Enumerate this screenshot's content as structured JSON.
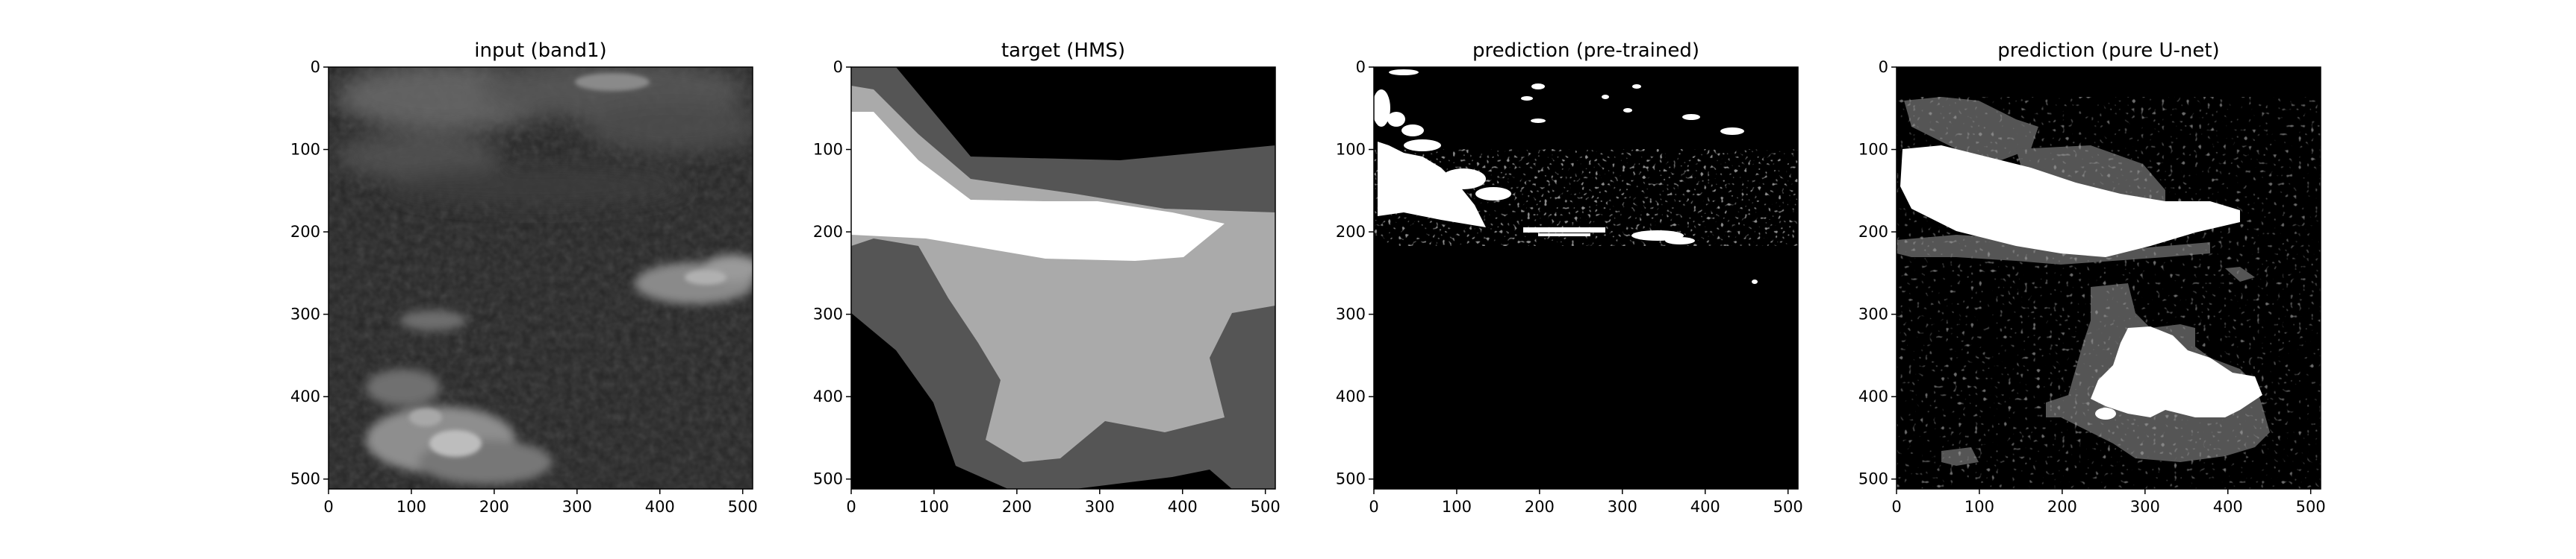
{
  "chart_data": [
    {
      "type": "heatmap",
      "title": "input (band1)",
      "image": "grayscale satellite band1 image with clouds (light gray) over dark background",
      "xlim": [
        0,
        512
      ],
      "ylim": [
        512,
        0
      ],
      "xticks": [
        0,
        100,
        200,
        300,
        400,
        500
      ],
      "yticks": [
        0,
        100,
        200,
        300,
        400,
        500
      ]
    },
    {
      "type": "heatmap",
      "title": "target (HMS)",
      "image": "segmentation mask with 4 levels: black, dark gray, light gray, white",
      "xlim": [
        0,
        512
      ],
      "ylim": [
        512,
        0
      ],
      "xticks": [
        0,
        100,
        200,
        300,
        400,
        500
      ],
      "yticks": [
        0,
        100,
        200,
        300,
        400,
        500
      ]
    },
    {
      "type": "heatmap",
      "title": "prediction (pre-trained)",
      "image": "binary prediction mask, white smoke plume band near y 100-200 on black",
      "xlim": [
        0,
        512
      ],
      "ylim": [
        512,
        0
      ],
      "xticks": [
        0,
        100,
        200,
        300,
        400,
        500
      ],
      "yticks": [
        0,
        100,
        200,
        300,
        400,
        500
      ]
    },
    {
      "type": "heatmap",
      "title": "prediction (pure U-net)",
      "image": "multi-level prediction mask: white plume and blob, dark gray regions, black background",
      "xlim": [
        0,
        512
      ],
      "ylim": [
        512,
        0
      ],
      "xticks": [
        0,
        100,
        200,
        300,
        400,
        500
      ],
      "yticks": [
        0,
        100,
        200,
        300,
        400,
        500
      ]
    }
  ],
  "colors": {
    "black": "#000000",
    "dark_gray": "#555555",
    "light_gray": "#aaaaaa",
    "white": "#ffffff",
    "input_base": "#262626"
  }
}
